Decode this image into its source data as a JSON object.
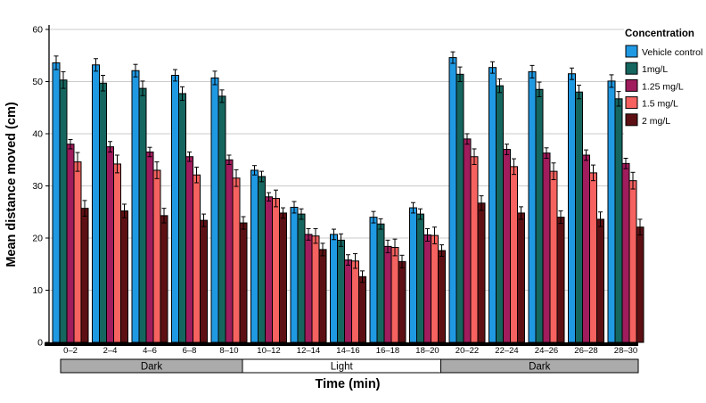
{
  "chart_data": {
    "type": "bar",
    "title": "",
    "xlabel": "Time (min)",
    "ylabel": "Mean distance moved (cm)",
    "ylim": [
      0,
      60
    ],
    "yticks": [
      0,
      10,
      20,
      30,
      40,
      50,
      60
    ],
    "grid": true,
    "legend_title": "Concentration",
    "legend_position": "right",
    "gridline_color": "#cbcbcb",
    "categories": [
      "0–2",
      "2–4",
      "4–6",
      "6–8",
      "8–10",
      "10–12",
      "12–14",
      "14–16",
      "16–18",
      "18–20",
      "20–22",
      "22–24",
      "24–26",
      "26–28",
      "28–30"
    ],
    "series": [
      {
        "name": "Vehicle control",
        "color": "#2099E3",
        "values": [
          53.6,
          53.2,
          52.1,
          51.2,
          50.7,
          33.0,
          25.9,
          20.7,
          24.0,
          25.8,
          54.6,
          52.7,
          51.9,
          51.5,
          50.1
        ],
        "errors": [
          1.3,
          1.2,
          1.2,
          1.1,
          1.3,
          0.9,
          1.1,
          1.0,
          1.1,
          1.0,
          1.1,
          1.1,
          1.2,
          1.1,
          1.2
        ]
      },
      {
        "name": "1mg/L",
        "color": "#15665F",
        "values": [
          50.3,
          49.7,
          48.7,
          47.7,
          47.2,
          31.8,
          24.6,
          19.6,
          22.7,
          24.6,
          51.4,
          49.2,
          48.5,
          48.0,
          46.7
        ],
        "errors": [
          1.6,
          1.5,
          1.4,
          1.3,
          1.2,
          1.0,
          1.0,
          1.2,
          1.0,
          1.0,
          1.4,
          1.3,
          1.4,
          1.3,
          1.4
        ]
      },
      {
        "name": "1.25 mg/L",
        "color": "#A01C5C",
        "values": [
          38.0,
          37.5,
          36.5,
          35.6,
          35.0,
          27.9,
          20.7,
          15.8,
          18.4,
          20.6,
          39.0,
          37.0,
          36.3,
          35.9,
          34.3
        ],
        "errors": [
          0.9,
          1.0,
          0.9,
          0.9,
          0.9,
          0.8,
          1.1,
          1.0,
          1.2,
          1.2,
          1.0,
          1.0,
          1.0,
          1.0,
          1.0
        ]
      },
      {
        "name": "1.5 mg/L",
        "color": "#F5625F",
        "values": [
          34.6,
          34.2,
          33.0,
          32.1,
          31.5,
          27.6,
          20.4,
          15.6,
          18.2,
          20.5,
          35.6,
          33.7,
          32.8,
          32.5,
          31.0
        ],
        "errors": [
          1.8,
          1.7,
          1.6,
          1.5,
          1.6,
          1.6,
          1.4,
          1.4,
          1.6,
          1.6,
          1.5,
          1.5,
          1.6,
          1.5,
          1.6
        ]
      },
      {
        "name": "2 mg/L",
        "color": "#5D1013",
        "values": [
          25.7,
          25.2,
          24.3,
          23.4,
          22.9,
          24.8,
          17.8,
          12.6,
          15.5,
          17.6,
          26.7,
          24.8,
          24.0,
          23.6,
          22.1
        ],
        "errors": [
          1.5,
          1.3,
          1.4,
          1.2,
          1.2,
          1.0,
          1.2,
          1.1,
          1.2,
          1.1,
          1.4,
          1.2,
          1.2,
          1.4,
          1.5
        ]
      }
    ],
    "phase_bands": [
      {
        "label": "Dark",
        "color": "#ACABAB",
        "start_category": "0–2",
        "end_category": "8–10"
      },
      {
        "label": "Light",
        "color": "#FFFFFF",
        "start_category": "10–12",
        "end_category": "18–20"
      },
      {
        "label": "Dark",
        "color": "#ACABAB",
        "start_category": "20–22",
        "end_category": "28–30"
      }
    ]
  }
}
